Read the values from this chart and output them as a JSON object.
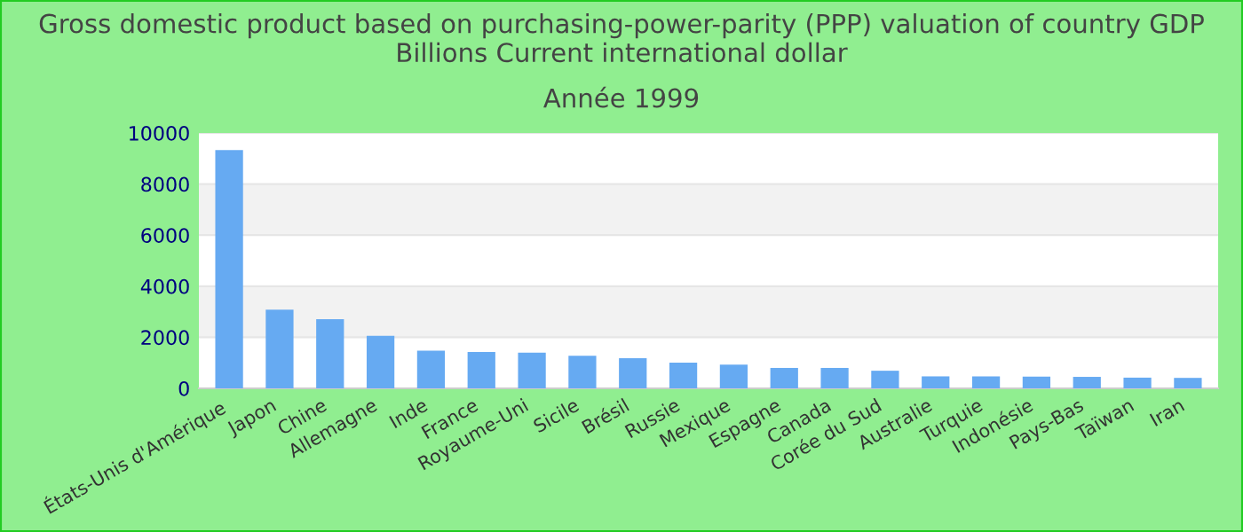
{
  "chart_data": {
    "type": "bar",
    "title": "Gross domestic product based on purchasing-power-parity (PPP) valuation of country GDP Billions Current international dollar",
    "subtitle": "Année 1999",
    "categories": [
      "États-Unis d'Amérique",
      "Japon",
      "Chine",
      "Allemagne",
      "Inde",
      "France",
      "Royaume-Uni",
      "Sicile",
      "Brésil",
      "Russie",
      "Mexique",
      "Espagne",
      "Canada",
      "Corée du Sud",
      "Australie",
      "Turquie",
      "Indonésie",
      "Pays-Bas",
      "Taïwan",
      "Iran"
    ],
    "values": [
      9330,
      3080,
      2710,
      2060,
      1480,
      1420,
      1400,
      1280,
      1180,
      1010,
      930,
      800,
      800,
      690,
      470,
      470,
      460,
      450,
      420,
      410
    ],
    "color": "#66aaf2",
    "ylim": [
      0,
      10000
    ],
    "yticks": [
      0,
      2000,
      4000,
      6000,
      8000,
      10000
    ],
    "grid": true,
    "legend": false
  }
}
